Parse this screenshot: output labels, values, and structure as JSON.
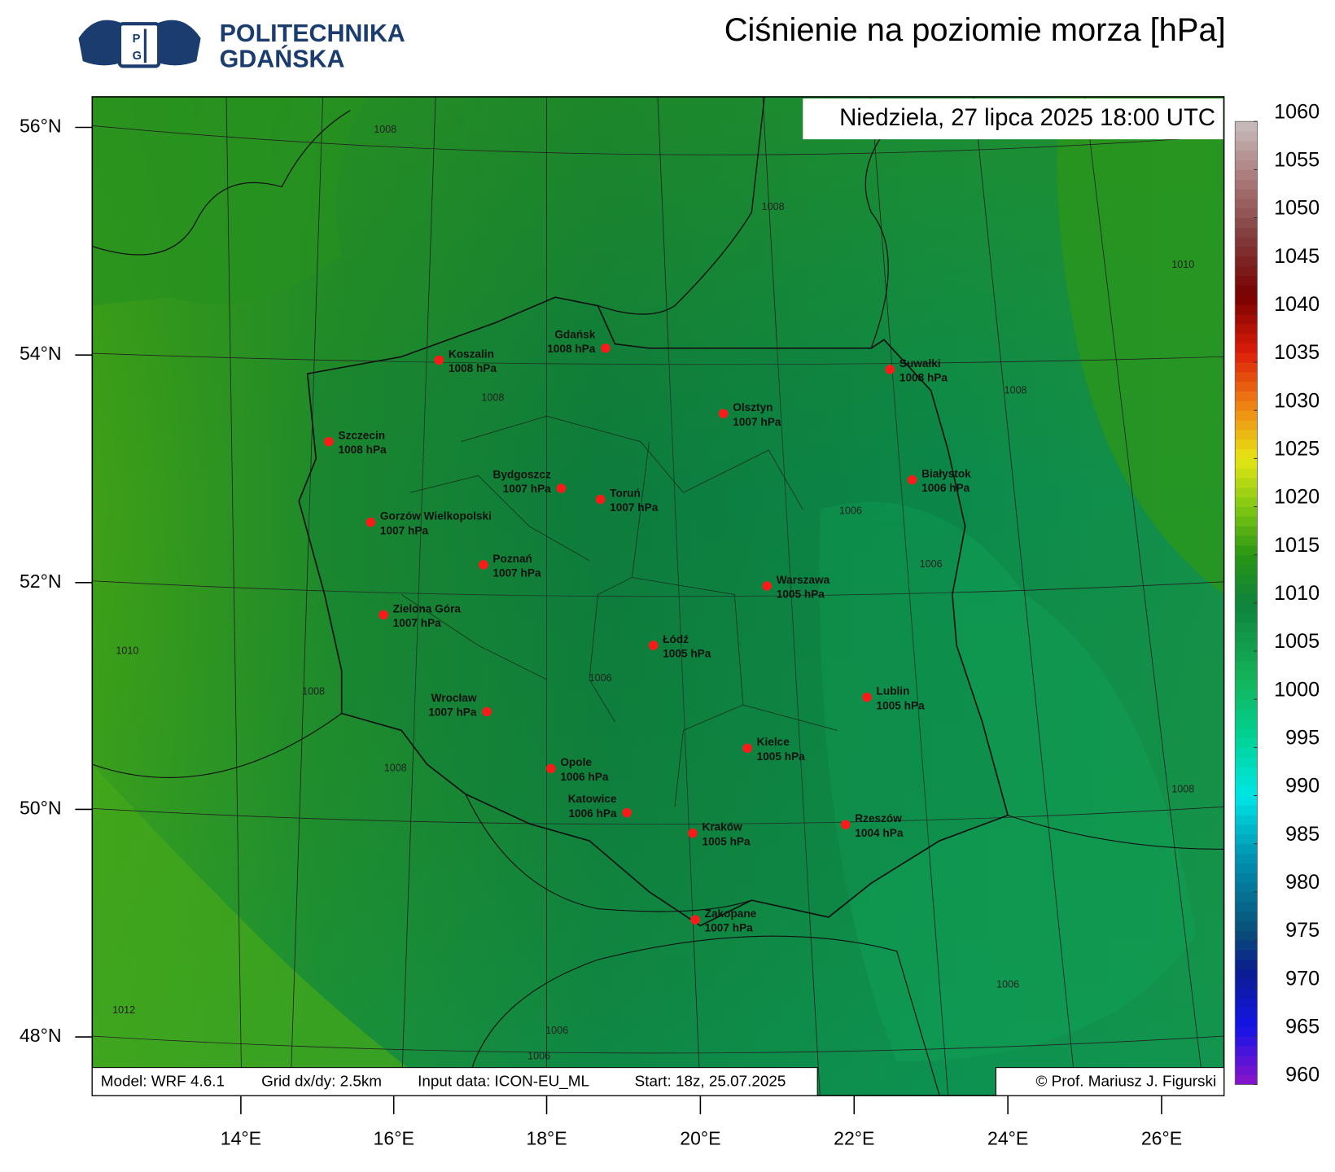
{
  "header": {
    "logo_line1": "POLITECHNIKA",
    "logo_line2": "GDAŃSKA",
    "title": "Ciśnienie na poziomie morza [hPa]",
    "valid_time": "Niedziela, 27 lipca 2025 18:00 UTC"
  },
  "footer": {
    "model_info": [
      "Model: WRF 4.6.1",
      "Grid dx/dy: 2.5km",
      "Input data: ICON-EU_ML",
      "Start: 18z, 25.07.2025"
    ],
    "copyright": "© Prof. Mariusz J. Figurski"
  },
  "map": {
    "lat_labels": [
      "56°N",
      "54°N",
      "52°N",
      "50°N",
      "48°N"
    ],
    "lon_labels": [
      "14°E",
      "16°E",
      "18°E",
      "20°E",
      "22°E",
      "24°E",
      "26°E"
    ],
    "cities": [
      {
        "name": "Koszalin",
        "pressure": "1008 hPa"
      },
      {
        "name": "Gdańsk",
        "pressure": "1008 hPa"
      },
      {
        "name": "Suwałki",
        "pressure": "1008 hPa"
      },
      {
        "name": "Olsztyn",
        "pressure": "1007 hPa"
      },
      {
        "name": "Szczecin",
        "pressure": "1008 hPa"
      },
      {
        "name": "Bydgoszcz",
        "pressure": "1007 hPa"
      },
      {
        "name": "Toruń",
        "pressure": "1007 hPa"
      },
      {
        "name": "Białystok",
        "pressure": "1006 hPa"
      },
      {
        "name": "Gorzów Wielkopolski",
        "pressure": "1007 hPa"
      },
      {
        "name": "Poznań",
        "pressure": "1007 hPa"
      },
      {
        "name": "Warszawa",
        "pressure": "1005 hPa"
      },
      {
        "name": "Zielona Góra",
        "pressure": "1007 hPa"
      },
      {
        "name": "Łódź",
        "pressure": "1005 hPa"
      },
      {
        "name": "Lublin",
        "pressure": "1005 hPa"
      },
      {
        "name": "Wrocław",
        "pressure": "1007 hPa"
      },
      {
        "name": "Kielce",
        "pressure": "1005 hPa"
      },
      {
        "name": "Opole",
        "pressure": "1006 hPa"
      },
      {
        "name": "Katowice",
        "pressure": "1006 hPa"
      },
      {
        "name": "Kraków",
        "pressure": "1005 hPa"
      },
      {
        "name": "Rzeszów",
        "pressure": "1004 hPa"
      },
      {
        "name": "Zakopane",
        "pressure": "1007 hPa"
      }
    ],
    "contour_labels": [
      1008,
      1008,
      1008,
      1008,
      1008,
      1008,
      1008,
      1010,
      1010,
      1006,
      1006,
      1006,
      1006,
      1006,
      1006,
      1012
    ]
  },
  "colorbar": {
    "ticks": [
      960,
      965,
      970,
      975,
      980,
      985,
      990,
      995,
      1000,
      1005,
      1010,
      1015,
      1020,
      1025,
      1030,
      1035,
      1040,
      1045,
      1050,
      1055,
      1060
    ]
  }
}
